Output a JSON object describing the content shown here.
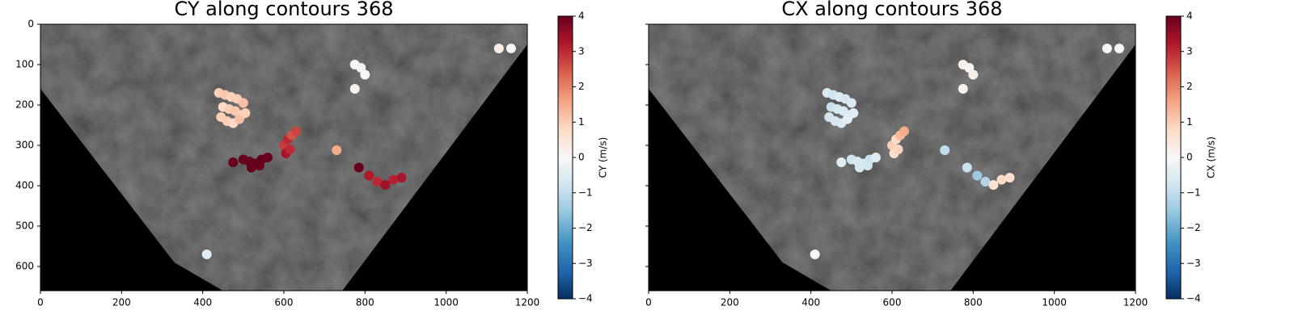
{
  "chart_data": [
    {
      "type": "scatter",
      "title": "CY  along contours 368",
      "x": [
        440,
        455,
        470,
        485,
        500,
        450,
        465,
        480,
        495,
        445,
        460,
        475,
        490,
        505,
        600,
        610,
        620,
        630,
        605,
        615,
        500,
        515,
        530,
        545,
        560,
        520,
        540,
        475,
        730,
        785,
        810,
        830,
        850,
        870,
        890,
        775,
        790,
        800,
        775,
        410,
        1130,
        1160
      ],
      "values": [
        170,
        175,
        180,
        185,
        195,
        205,
        210,
        215,
        225,
        230,
        240,
        245,
        235,
        220,
        300,
        285,
        275,
        265,
        320,
        310,
        335,
        340,
        345,
        335,
        330,
        355,
        350,
        342,
        312,
        355,
        375,
        390,
        398,
        385,
        380,
        100,
        108,
        125,
        160,
        570,
        60,
        60
      ],
      "color_values": [
        1,
        1.1,
        0.9,
        1,
        1.2,
        0.8,
        1,
        1.1,
        0.9,
        1,
        1,
        0.8,
        1.2,
        1,
        2.8,
        3,
        2.5,
        2.7,
        3.3,
        3,
        4,
        4,
        4,
        4,
        4,
        4,
        4,
        4,
        1.5,
        4,
        3.2,
        3,
        3.4,
        3.1,
        3.3,
        0,
        -0.2,
        0.1,
        0.2,
        -0.5,
        0.3,
        0.1
      ],
      "xlim": [
        0,
        1200
      ],
      "ylim": [
        660,
        0
      ],
      "xticks": [
        0,
        200,
        400,
        600,
        800,
        1000,
        1200
      ],
      "yticks": [
        0,
        100,
        200,
        300,
        400,
        500,
        600
      ],
      "show_ytick_labels": true,
      "colorbar": {
        "label": "CY (m/s)",
        "colormap": "RdBu_r",
        "lim": [
          -4,
          4
        ],
        "ticks": [
          {
            "value": -4,
            "label": "−4"
          },
          {
            "value": -3,
            "label": "−3"
          },
          {
            "value": -2,
            "label": "−2"
          },
          {
            "value": -1,
            "label": "−1"
          },
          0,
          1,
          2,
          3,
          4
        ]
      }
    },
    {
      "type": "scatter",
      "title": "CX along contours 368",
      "x": [
        440,
        455,
        470,
        485,
        500,
        450,
        465,
        480,
        495,
        445,
        460,
        475,
        490,
        505,
        600,
        610,
        620,
        630,
        605,
        615,
        500,
        515,
        530,
        545,
        560,
        520,
        540,
        475,
        730,
        785,
        810,
        830,
        850,
        870,
        890,
        775,
        790,
        800,
        775,
        410,
        1130,
        1160
      ],
      "values": [
        170,
        175,
        180,
        185,
        195,
        205,
        210,
        215,
        225,
        230,
        240,
        245,
        235,
        220,
        300,
        285,
        275,
        265,
        320,
        310,
        335,
        340,
        345,
        335,
        330,
        355,
        350,
        342,
        312,
        355,
        375,
        390,
        398,
        385,
        380,
        100,
        108,
        125,
        160,
        570,
        60,
        60
      ],
      "color_values": [
        -0.6,
        -0.8,
        -0.5,
        -0.7,
        -0.6,
        -0.9,
        -0.7,
        -0.6,
        -0.5,
        -0.8,
        -0.7,
        -0.6,
        -0.4,
        -0.5,
        1,
        0.8,
        1.3,
        1.5,
        0.7,
        0.9,
        -0.8,
        -0.7,
        -0.6,
        -0.9,
        -0.5,
        -0.7,
        -0.8,
        -0.5,
        -1,
        -0.9,
        -1.5,
        -1.2,
        0.6,
        0.8,
        0.7,
        0.2,
        0.1,
        0.3,
        0.2,
        0,
        0.1,
        0.1
      ],
      "xlim": [
        0,
        1200
      ],
      "ylim": [
        660,
        0
      ],
      "xticks": [
        0,
        200,
        400,
        600,
        800,
        1000,
        1200
      ],
      "yticks": [
        0,
        100,
        200,
        300,
        400,
        500,
        600
      ],
      "show_ytick_labels": false,
      "colorbar": {
        "label": "CX (m/s)",
        "colormap": "RdBu_r",
        "lim": [
          -4,
          4
        ],
        "ticks": [
          {
            "value": -4,
            "label": "−4"
          },
          {
            "value": -3,
            "label": "−3"
          },
          {
            "value": -2,
            "label": "−2"
          },
          {
            "value": -1,
            "label": "−1"
          },
          0,
          1,
          2,
          3,
          4
        ]
      }
    }
  ]
}
